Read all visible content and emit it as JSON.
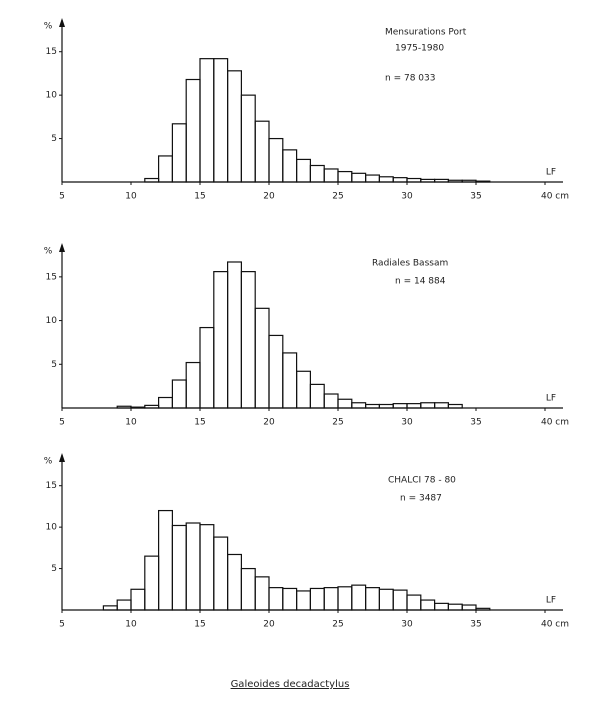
{
  "chart_data": [
    {
      "type": "histogram",
      "y_label": "%",
      "x_label": "LF",
      "annotations": [
        "Mensurations Port",
        "1975-1980",
        "n = 78 033"
      ],
      "bins": [
        11,
        12,
        13,
        14,
        15,
        16,
        17,
        18,
        19,
        20,
        21,
        22,
        23,
        24,
        25,
        26,
        27,
        28,
        29,
        30,
        31,
        32,
        33,
        34,
        35,
        36
      ],
      "values": [
        0.4,
        3.0,
        6.7,
        11.8,
        14.2,
        14.2,
        12.8,
        10.0,
        7.0,
        5.0,
        3.7,
        2.6,
        1.9,
        1.5,
        1.2,
        1.0,
        0.8,
        0.6,
        0.5,
        0.4,
        0.3,
        0.3,
        0.2,
        0.2,
        0.1
      ],
      "color": "#111",
      "xlim": [
        5,
        40
      ],
      "xticks": [
        5,
        10,
        15,
        20,
        25,
        30,
        35,
        {
          "value": 40,
          "label": "40 cm"
        }
      ],
      "ylim": [
        0,
        17.5
      ],
      "yticks": [
        5,
        10,
        15
      ]
    },
    {
      "type": "histogram",
      "y_label": "%",
      "x_label": "LF",
      "annotations": [
        "Radiales Bassam",
        "n = 14 884"
      ],
      "bins": [
        9,
        10,
        11,
        12,
        13,
        14,
        15,
        16,
        17,
        18,
        19,
        20,
        21,
        22,
        23,
        24,
        25,
        26,
        27,
        28,
        29,
        30,
        31,
        32,
        33,
        34
      ],
      "values": [
        0.2,
        0.1,
        0.3,
        1.2,
        3.2,
        5.2,
        9.2,
        15.6,
        16.7,
        15.6,
        11.4,
        8.3,
        6.3,
        4.2,
        2.7,
        1.6,
        1.0,
        0.6,
        0.4,
        0.4,
        0.5,
        0.5,
        0.6,
        0.6,
        0.4
      ],
      "color": "#111",
      "xlim": [
        5,
        40
      ],
      "xticks": [
        5,
        10,
        15,
        20,
        25,
        30,
        35,
        {
          "value": 40,
          "label": "40 cm"
        }
      ],
      "ylim": [
        0,
        17.5
      ],
      "yticks": [
        5,
        10,
        15
      ]
    },
    {
      "type": "histogram",
      "y_label": "%",
      "x_label": "LF",
      "annotations": [
        "CHALCI 78 - 80",
        "n = 3487"
      ],
      "bins": [
        8,
        9,
        10,
        11,
        12,
        13,
        14,
        15,
        16,
        17,
        18,
        19,
        20,
        21,
        22,
        23,
        24,
        25,
        26,
        27,
        28,
        29,
        30,
        31,
        32,
        33,
        34,
        35,
        36
      ],
      "values": [
        0.5,
        1.2,
        2.5,
        6.5,
        12.0,
        10.2,
        10.5,
        10.3,
        8.8,
        6.7,
        5.0,
        4.0,
        2.7,
        2.6,
        2.3,
        2.6,
        2.7,
        2.8,
        3.0,
        2.7,
        2.5,
        2.4,
        1.8,
        1.2,
        0.8,
        0.7,
        0.6,
        0.2
      ],
      "color": "#111",
      "xlim": [
        5,
        40
      ],
      "xticks": [
        5,
        10,
        15,
        20,
        25,
        30,
        35,
        {
          "value": 40,
          "label": "40 cm"
        }
      ],
      "ylim": [
        0,
        17.5
      ],
      "yticks": [
        5,
        10,
        15
      ]
    }
  ],
  "caption": "Galeoides decadactylus"
}
